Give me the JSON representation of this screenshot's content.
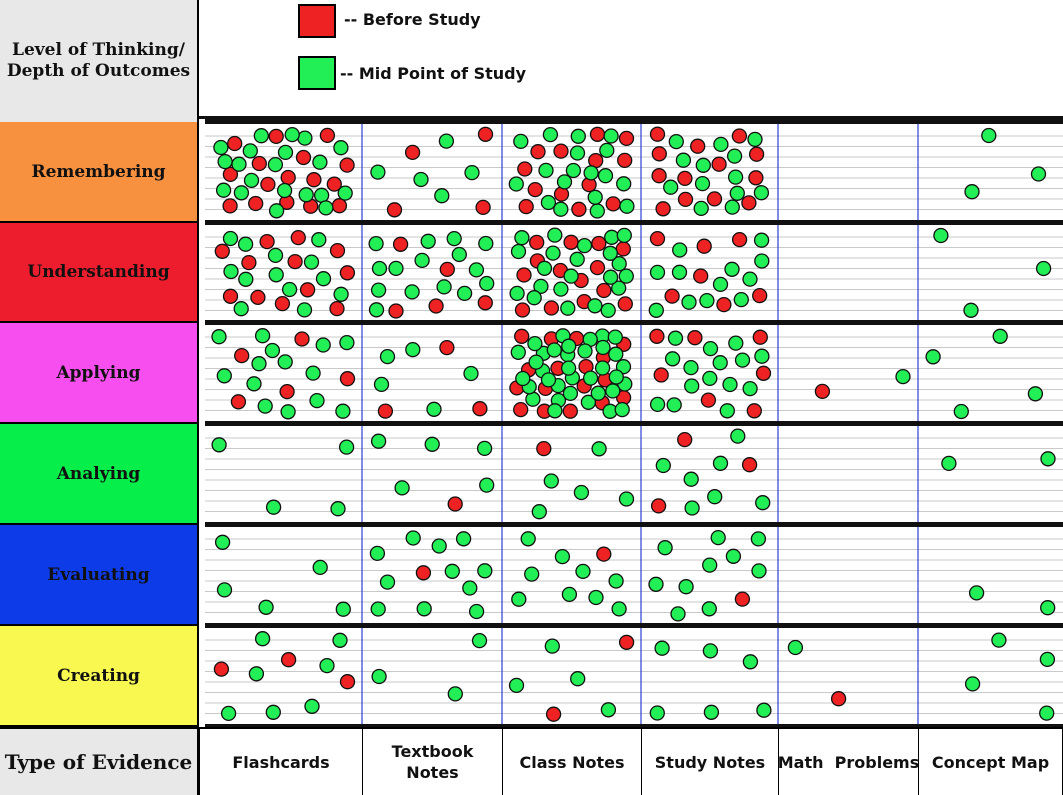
{
  "header": {
    "title": "Level of Thinking/ Depth of Outcomes",
    "legend": [
      {
        "label": "-- Before Study",
        "color": "#ee2222"
      },
      {
        "label": "-- Mid Point of Study",
        "color": "#22ee55"
      }
    ]
  },
  "levels": [
    {
      "label": "Remembering",
      "color": "#f7903f"
    },
    {
      "label": "Understanding",
      "color": "#ee1d2d"
    },
    {
      "label": "Applying",
      "color": "#f74ef0"
    },
    {
      "label": "Analying",
      "color": "#06ee4a"
    },
    {
      "label": "Evaluating",
      "color": "#0d3be8"
    },
    {
      "label": "Creating",
      "color": "#f8f851"
    }
  ],
  "footer": {
    "title": "Type of Evidence",
    "columns": [
      "Flashcards",
      "Textbook Notes",
      "Class Notes",
      "Study Notes",
      "Math  Problems",
      "Concept Map"
    ]
  },
  "counts": {
    "before": [
      [
        16,
        4,
        13,
        13,
        0,
        0
      ],
      [
        12,
        5,
        14,
        7,
        0,
        0
      ],
      [
        5,
        3,
        17,
        7,
        1,
        0
      ],
      [
        0,
        1,
        1,
        3,
        0,
        0
      ],
      [
        0,
        1,
        1,
        1,
        0,
        0
      ],
      [
        3,
        0,
        2,
        0,
        1,
        0
      ]
    ],
    "mid": [
      [
        20,
        5,
        18,
        13,
        0,
        3
      ],
      [
        13,
        15,
        22,
        12,
        0,
        3
      ],
      [
        14,
        5,
        35,
        15,
        1,
        4
      ],
      [
        4,
        5,
        5,
        7,
        0,
        2
      ],
      [
        5,
        11,
        9,
        10,
        0,
        2
      ],
      [
        7,
        3,
        4,
        6,
        1,
        4
      ]
    ]
  }
}
